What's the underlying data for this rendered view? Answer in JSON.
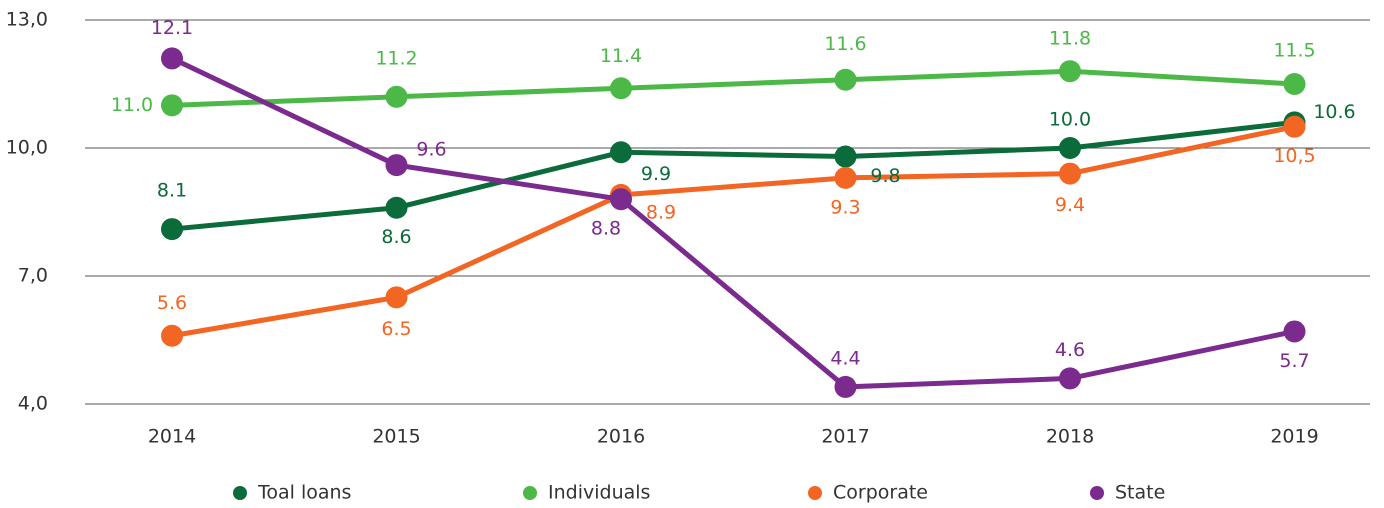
{
  "chart_data": {
    "type": "line",
    "categories": [
      "2014",
      "2015",
      "2016",
      "2017",
      "2018",
      "2019"
    ],
    "ylim": [
      4,
      13
    ],
    "yticks": [
      {
        "value": 4,
        "label": "4,0"
      },
      {
        "value": 7,
        "label": "7,0"
      },
      {
        "value": 10,
        "label": "10,0"
      },
      {
        "value": 13,
        "label": "13,0"
      }
    ],
    "grid": true,
    "legend": "bottom",
    "series": [
      {
        "name": "Toal loans",
        "color": "#0b6b3a",
        "values": [
          8.1,
          8.6,
          9.9,
          9.8,
          10.0,
          10.6
        ],
        "value_labels": [
          "8.1",
          "8.6",
          "9.9",
          "9.8",
          "10.0",
          "10.6"
        ]
      },
      {
        "name": "Individuals",
        "color": "#4cb848",
        "values": [
          11.0,
          11.2,
          11.4,
          11.6,
          11.8,
          11.5
        ],
        "value_labels": [
          "11.0",
          "11.2",
          "11.4",
          "11.6",
          "11.8",
          "11.5"
        ]
      },
      {
        "name": "Corporate",
        "color": "#f26522",
        "values": [
          5.6,
          6.5,
          8.9,
          9.3,
          9.4,
          10.5
        ],
        "value_labels": [
          "5.6",
          "6.5",
          "8.9",
          "9.3",
          "9.4",
          "10,5"
        ]
      },
      {
        "name": "State",
        "color": "#7b2a8e",
        "values": [
          12.1,
          9.6,
          8.8,
          4.4,
          4.6,
          5.7
        ],
        "value_labels": [
          "12.1",
          "9.6",
          "8.8",
          "4.4",
          "4.6",
          "5.7"
        ]
      }
    ]
  }
}
